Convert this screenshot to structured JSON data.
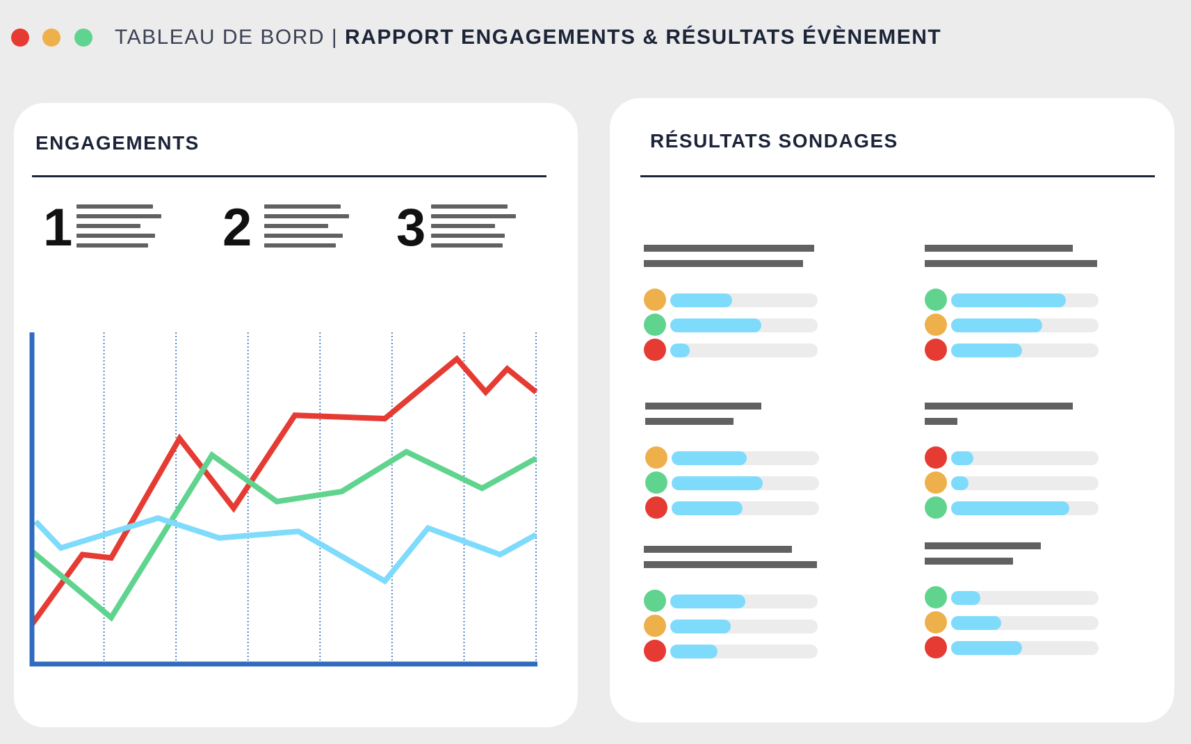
{
  "window": {
    "title_prefix": "TABLEAU DE BORD | ",
    "title_main": "RAPPORT ENGAGEMENTS & RÉSULTATS ÉVÈNEMENT",
    "controls": [
      "close-dot",
      "minimize-dot",
      "maximize-dot"
    ]
  },
  "colors": {
    "red": "#e53b33",
    "yellow": "#eeb04a",
    "green": "#60d48f",
    "lightblue": "#7fdbfb",
    "axis": "#2f6bbf",
    "navy": "#1c2438"
  },
  "engagements": {
    "title": "ENGAGEMENTS",
    "kpis": [
      {
        "number": "1"
      },
      {
        "number": "2"
      },
      {
        "number": "3"
      }
    ]
  },
  "chart_data": {
    "type": "line",
    "title": "",
    "xlabel": "",
    "ylabel": "",
    "ylim": [
      0,
      100
    ],
    "grid": "vertical dotted",
    "x": [
      0,
      0.5,
      1,
      1.5,
      2,
      2.5,
      3,
      3.5,
      4,
      4.5,
      5,
      5.5,
      6,
      6.5,
      7
    ],
    "series": [
      {
        "color": "red",
        "points": [
          [
            0,
            12
          ],
          [
            0.7,
            33
          ],
          [
            1.1,
            32
          ],
          [
            2.05,
            68
          ],
          [
            2.8,
            47
          ],
          [
            3.65,
            75
          ],
          [
            4.9,
            74
          ],
          [
            5.9,
            92
          ],
          [
            6.3,
            82
          ],
          [
            6.6,
            89
          ],
          [
            7,
            82
          ]
        ]
      },
      {
        "color": "green",
        "points": [
          [
            0,
            34
          ],
          [
            1.1,
            14
          ],
          [
            2.5,
            63
          ],
          [
            3.4,
            49
          ],
          [
            4.3,
            52
          ],
          [
            5.2,
            64
          ],
          [
            6.25,
            53
          ],
          [
            7,
            62
          ]
        ]
      },
      {
        "color": "lightblue",
        "points": [
          [
            0.05,
            43
          ],
          [
            0.4,
            35
          ],
          [
            1.75,
            44
          ],
          [
            2.6,
            38
          ],
          [
            3.7,
            40
          ],
          [
            4.9,
            25
          ],
          [
            5.5,
            41
          ],
          [
            6.5,
            33
          ],
          [
            7,
            39
          ]
        ]
      }
    ]
  },
  "survey": {
    "title": "RÉSULTATS SONDAGES",
    "blocks": [
      {
        "rows": [
          {
            "dot": "yellow",
            "value": 0.42
          },
          {
            "dot": "green",
            "value": 0.62
          },
          {
            "dot": "red",
            "value": 0.13
          }
        ]
      },
      {
        "rows": [
          {
            "dot": "green",
            "value": 0.78
          },
          {
            "dot": "yellow",
            "value": 0.62
          },
          {
            "dot": "red",
            "value": 0.48
          }
        ]
      },
      {
        "rows": [
          {
            "dot": "yellow",
            "value": 0.51
          },
          {
            "dot": "green",
            "value": 0.62
          },
          {
            "dot": "red",
            "value": 0.48
          }
        ]
      },
      {
        "rows": [
          {
            "dot": "red",
            "value": 0.15
          },
          {
            "dot": "yellow",
            "value": 0.12
          },
          {
            "dot": "green",
            "value": 0.8
          }
        ]
      },
      {
        "rows": [
          {
            "dot": "green",
            "value": 0.51
          },
          {
            "dot": "yellow",
            "value": 0.41
          },
          {
            "dot": "red",
            "value": 0.32
          }
        ]
      },
      {
        "rows": [
          {
            "dot": "green",
            "value": 0.2
          },
          {
            "dot": "yellow",
            "value": 0.34
          },
          {
            "dot": "red",
            "value": 0.48
          }
        ]
      }
    ]
  }
}
